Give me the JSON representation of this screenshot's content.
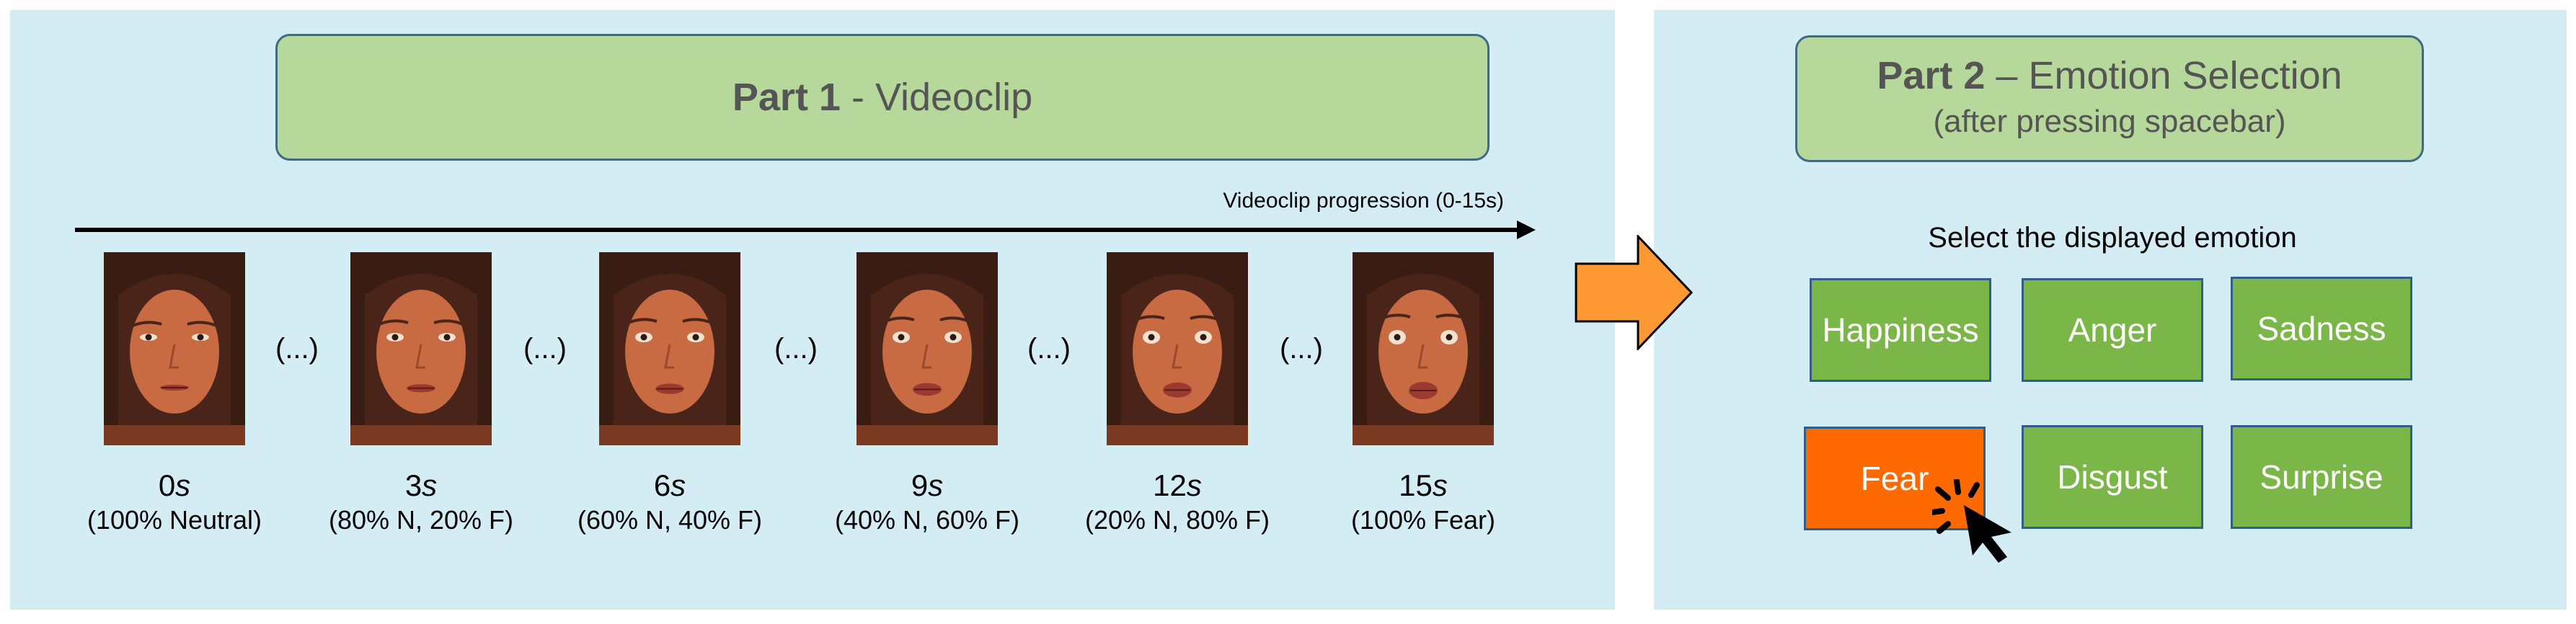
{
  "part1": {
    "title_bold": "Part 1",
    "title_rest": " - Videoclip",
    "progression_label": "Videoclip progression (0-15s)",
    "ellipsis": "(...)",
    "frames": [
      {
        "time_num": "0",
        "time_unit": "s",
        "mix": "(100% Neutral)",
        "fear_fraction": 0.0
      },
      {
        "time_num": "3",
        "time_unit": "s",
        "mix": "(80% N, 20% F)",
        "fear_fraction": 0.2
      },
      {
        "time_num": "6",
        "time_unit": "s",
        "mix": "(60% N, 40% F)",
        "fear_fraction": 0.4
      },
      {
        "time_num": "9",
        "time_unit": "s",
        "mix": "(40% N, 60% F)",
        "fear_fraction": 0.6
      },
      {
        "time_num": "12",
        "time_unit": "s",
        "mix": "(20% N, 80% F)",
        "fear_fraction": 0.8
      },
      {
        "time_num": "15",
        "time_unit": "s",
        "mix": "(100% Fear)",
        "fear_fraction": 1.0
      }
    ]
  },
  "part2": {
    "title_bold": "Part 2",
    "title_rest": " – Emotion Selection",
    "subtitle": "(after pressing spacebar)",
    "prompt": "Select the displayed emotion",
    "buttons": [
      "Happiness",
      "Anger",
      "Sadness",
      "Fear",
      "Disgust",
      "Surprise"
    ],
    "selected": "Fear"
  },
  "colors": {
    "panel_bg": "#d4edf5",
    "title_bg": "#b7d89b",
    "button_bg": "#7ab648",
    "selected_bg": "#ff6a00",
    "arrow": "#ff9933",
    "border": "#2e5e8a"
  },
  "icons": [
    "right-arrow-icon",
    "click-cursor-icon"
  ]
}
